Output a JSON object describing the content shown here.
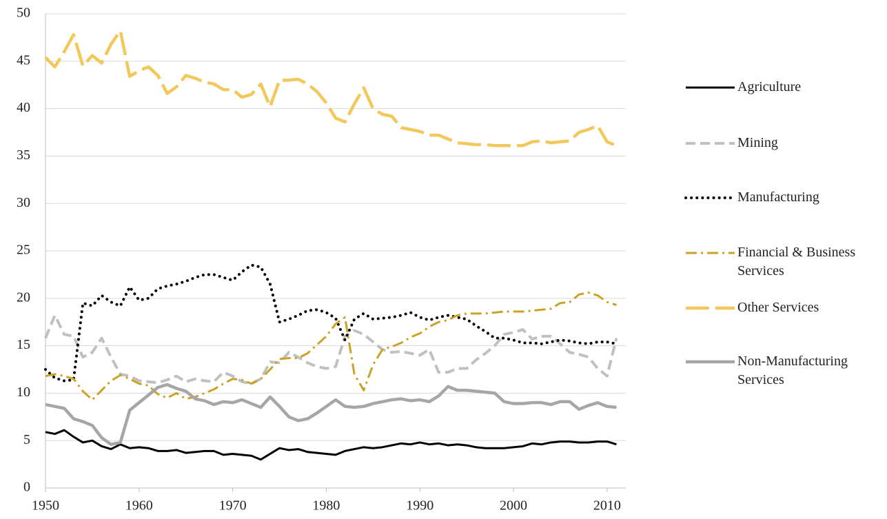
{
  "chart_data": {
    "type": "line",
    "x": [
      1950,
      1951,
      1952,
      1953,
      1954,
      1955,
      1956,
      1957,
      1958,
      1959,
      1960,
      1961,
      1962,
      1963,
      1964,
      1965,
      1966,
      1967,
      1968,
      1969,
      1970,
      1971,
      1972,
      1973,
      1974,
      1975,
      1976,
      1977,
      1978,
      1979,
      1980,
      1981,
      1982,
      1983,
      1984,
      1985,
      1986,
      1987,
      1988,
      1989,
      1990,
      1991,
      1992,
      1993,
      1994,
      1995,
      1996,
      1997,
      1998,
      1999,
      2000,
      2001,
      2002,
      2003,
      2004,
      2005,
      2006,
      2007,
      2008,
      2009,
      2010,
      2011
    ],
    "xlim": [
      1950,
      2012
    ],
    "xticks": [
      1950,
      1960,
      1970,
      1980,
      1990,
      2000,
      2010
    ],
    "ylim": [
      0,
      50
    ],
    "yticks": [
      0,
      5,
      10,
      15,
      20,
      25,
      30,
      35,
      40,
      45,
      50
    ],
    "grid": true,
    "series": [
      {
        "name": "Agriculture",
        "color": "#000000",
        "style": "solid",
        "values": [
          5.9,
          5.7,
          6.1,
          5.4,
          4.8,
          5.0,
          4.4,
          4.1,
          4.6,
          4.2,
          4.3,
          4.2,
          3.9,
          3.9,
          4.0,
          3.7,
          3.8,
          3.9,
          3.9,
          3.5,
          3.6,
          3.5,
          3.4,
          3.0,
          3.6,
          4.2,
          4.0,
          4.1,
          3.8,
          3.7,
          3.6,
          3.5,
          3.9,
          4.1,
          4.3,
          4.2,
          4.3,
          4.5,
          4.7,
          4.6,
          4.8,
          4.6,
          4.7,
          4.5,
          4.6,
          4.5,
          4.3,
          4.2,
          4.2,
          4.2,
          4.3,
          4.4,
          4.7,
          4.6,
          4.8,
          4.9,
          4.9,
          4.8,
          4.8,
          4.9,
          4.9,
          4.6
        ]
      },
      {
        "name": "Mining",
        "color": "#c0c0c0",
        "style": "dashed",
        "values": [
          15.8,
          18.2,
          16.2,
          16.0,
          13.8,
          14.3,
          15.8,
          13.8,
          12.0,
          11.8,
          11.3,
          11.2,
          11.1,
          11.4,
          11.8,
          11.2,
          11.5,
          11.3,
          11.2,
          12.2,
          11.8,
          11.2,
          11.0,
          11.5,
          13.3,
          13.2,
          14.3,
          13.8,
          13.2,
          12.8,
          12.6,
          12.8,
          16.0,
          16.6,
          16.2,
          15.4,
          14.6,
          14.3,
          14.4,
          14.2,
          14.0,
          14.6,
          12.2,
          12.2,
          12.6,
          12.6,
          13.5,
          14.2,
          15.0,
          16.2,
          16.4,
          16.7,
          15.7,
          16.0,
          16.0,
          15.2,
          14.3,
          14.1,
          13.8,
          12.6,
          11.8,
          15.8
        ]
      },
      {
        "name": "Manufacturing",
        "color": "#000000",
        "style": "dotted",
        "values": [
          12.5,
          11.6,
          11.3,
          11.4,
          19.5,
          19.2,
          20.3,
          19.6,
          19.2,
          21.2,
          19.8,
          20.0,
          21.0,
          21.3,
          21.5,
          21.8,
          22.2,
          22.5,
          22.5,
          22.2,
          21.9,
          22.8,
          23.5,
          23.3,
          21.5,
          17.5,
          17.8,
          18.2,
          18.7,
          18.8,
          18.5,
          17.9,
          15.6,
          17.8,
          18.4,
          17.8,
          17.9,
          18.0,
          18.2,
          18.5,
          18.0,
          17.7,
          18.0,
          18.2,
          18.0,
          17.8,
          17.1,
          16.5,
          15.8,
          15.8,
          15.6,
          15.3,
          15.3,
          15.2,
          15.4,
          15.6,
          15.5,
          15.3,
          15.2,
          15.4,
          15.4,
          15.2
        ]
      },
      {
        "name": "Financial & Business Services",
        "color": "#c9a227",
        "style": "dashdot",
        "values": [
          11.8,
          12.0,
          11.8,
          11.5,
          10.2,
          9.3,
          10.3,
          11.3,
          11.9,
          11.5,
          11.0,
          10.8,
          9.9,
          9.5,
          10.0,
          9.4,
          9.6,
          10.0,
          10.4,
          11.0,
          11.5,
          11.4,
          11.0,
          11.5,
          12.5,
          13.6,
          13.7,
          13.7,
          14.2,
          15.1,
          16.0,
          17.3,
          18.0,
          12.0,
          10.3,
          13.0,
          14.6,
          14.9,
          15.3,
          15.9,
          16.3,
          17.0,
          17.5,
          17.7,
          18.2,
          18.4,
          18.4,
          18.4,
          18.5,
          18.6,
          18.6,
          18.6,
          18.7,
          18.8,
          18.9,
          19.5,
          19.6,
          20.4,
          20.6,
          20.3,
          19.6,
          19.3
        ]
      },
      {
        "name": "Other Services",
        "color": "#f2c85b",
        "style": "longdash",
        "values": [
          45.4,
          44.4,
          46.0,
          47.8,
          44.5,
          45.6,
          44.8,
          46.8,
          48.2,
          43.4,
          44.0,
          44.4,
          43.5,
          41.6,
          42.3,
          43.5,
          43.2,
          42.8,
          42.6,
          42.0,
          42.0,
          41.2,
          41.5,
          42.6,
          40.2,
          43.0,
          43.0,
          43.1,
          42.6,
          41.8,
          40.6,
          39.0,
          38.6,
          40.5,
          42.2,
          40.0,
          39.4,
          39.2,
          38.0,
          37.8,
          37.6,
          37.2,
          37.2,
          36.8,
          36.4,
          36.3,
          36.2,
          36.2,
          36.1,
          36.1,
          36.1,
          36.1,
          36.5,
          36.6,
          36.4,
          36.5,
          36.6,
          37.5,
          37.8,
          38.2,
          36.5,
          36.1
        ]
      },
      {
        "name": "Non-Manufacturing Services",
        "color": "#a6a6a6",
        "style": "solid",
        "values": [
          8.8,
          8.6,
          8.4,
          7.3,
          7.0,
          6.6,
          5.3,
          4.6,
          4.8,
          8.2,
          9.0,
          9.8,
          10.6,
          10.9,
          10.5,
          10.2,
          9.4,
          9.2,
          8.8,
          9.1,
          9.0,
          9.3,
          8.9,
          8.5,
          9.6,
          8.6,
          7.5,
          7.1,
          7.3,
          7.9,
          8.6,
          9.3,
          8.6,
          8.5,
          8.6,
          8.9,
          9.1,
          9.3,
          9.4,
          9.2,
          9.3,
          9.1,
          9.7,
          10.7,
          10.3,
          10.3,
          10.2,
          10.1,
          10.0,
          9.1,
          8.9,
          8.9,
          9.0,
          9.0,
          8.8,
          9.1,
          9.1,
          8.3,
          8.7,
          9.0,
          8.6,
          8.5
        ]
      }
    ]
  }
}
